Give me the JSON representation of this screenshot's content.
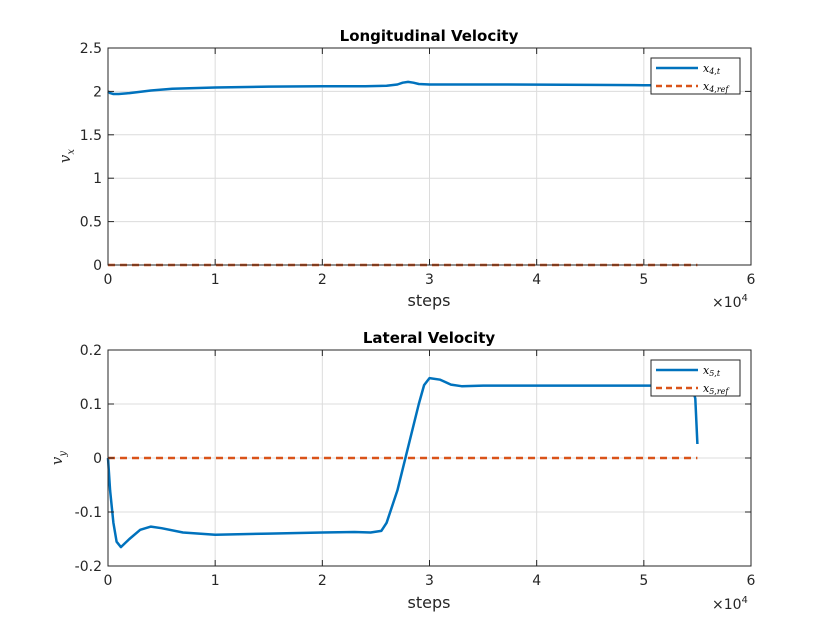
{
  "chart_data": [
    {
      "type": "line",
      "title": "Longitudinal Velocity",
      "xlabel": "steps",
      "ylabel_base": "v",
      "ylabel_sub": "x",
      "x_exponent_label": "×10",
      "x_exponent_power": "4",
      "xlim": [
        0,
        6
      ],
      "ylim": [
        0,
        2.5
      ],
      "xticks": [
        0,
        1,
        2,
        3,
        4,
        5,
        6
      ],
      "xtick_labels": [
        "0",
        "1",
        "2",
        "3",
        "4",
        "5",
        "6"
      ],
      "yticks": [
        0,
        0.5,
        1,
        1.5,
        2,
        2.5
      ],
      "ytick_labels": [
        "0",
        "0.5",
        "1",
        "1.5",
        "2",
        "2.5"
      ],
      "grid": true,
      "legend_position": "top-right",
      "series": [
        {
          "name": "x_{4,t}",
          "legend_base": "x",
          "legend_sub": "4,t",
          "style": "solid",
          "color": "#0072bd",
          "x": [
            0,
            0.02,
            0.05,
            0.1,
            0.2,
            0.4,
            0.6,
            1.0,
            1.5,
            2.0,
            2.4,
            2.6,
            2.7,
            2.75,
            2.8,
            2.85,
            2.9,
            3.0,
            3.5,
            4.0,
            4.5,
            5.0,
            5.5
          ],
          "y": [
            2.0,
            1.98,
            1.97,
            1.97,
            1.98,
            2.01,
            2.03,
            2.045,
            2.055,
            2.06,
            2.06,
            2.065,
            2.08,
            2.1,
            2.11,
            2.1,
            2.085,
            2.08,
            2.08,
            2.078,
            2.075,
            2.072,
            2.07
          ]
        },
        {
          "name": "x_{4,ref}",
          "legend_base": "x",
          "legend_sub": "4,ref",
          "style": "dashed",
          "color": "#d95319",
          "x": [
            0,
            5.5
          ],
          "y": [
            0,
            0
          ]
        }
      ]
    },
    {
      "type": "line",
      "title": "Lateral Velocity",
      "xlabel": "steps",
      "ylabel_base": "v",
      "ylabel_sub": "y",
      "x_exponent_label": "×10",
      "x_exponent_power": "4",
      "xlim": [
        0,
        6
      ],
      "ylim": [
        -0.2,
        0.2
      ],
      "xticks": [
        0,
        1,
        2,
        3,
        4,
        5,
        6
      ],
      "xtick_labels": [
        "0",
        "1",
        "2",
        "3",
        "4",
        "5",
        "6"
      ],
      "yticks": [
        -0.2,
        -0.1,
        0,
        0.1,
        0.2
      ],
      "ytick_labels": [
        "-0.2",
        "-0.1",
        "0",
        "0.1",
        "0.2"
      ],
      "grid": true,
      "legend_position": "top-right",
      "series": [
        {
          "name": "x_{5,t}",
          "legend_base": "x",
          "legend_sub": "5,t",
          "style": "solid",
          "color": "#0072bd",
          "x": [
            0,
            0.02,
            0.05,
            0.08,
            0.12,
            0.2,
            0.3,
            0.4,
            0.5,
            0.7,
            1.0,
            1.5,
            2.0,
            2.3,
            2.45,
            2.55,
            2.6,
            2.7,
            2.8,
            2.9,
            2.95,
            3.0,
            3.1,
            3.2,
            3.3,
            3.5,
            4.0,
            4.5,
            5.0,
            5.3,
            5.4,
            5.45,
            5.48,
            5.5
          ],
          "y": [
            0,
            -0.06,
            -0.12,
            -0.155,
            -0.165,
            -0.15,
            -0.133,
            -0.127,
            -0.13,
            -0.138,
            -0.142,
            -0.14,
            -0.138,
            -0.137,
            -0.138,
            -0.135,
            -0.12,
            -0.06,
            0.02,
            0.1,
            0.135,
            0.148,
            0.145,
            0.136,
            0.133,
            0.134,
            0.134,
            0.134,
            0.134,
            0.134,
            0.134,
            0.132,
            0.11,
            0.026
          ]
        },
        {
          "name": "x_{5,ref}",
          "legend_base": "x",
          "legend_sub": "5,ref",
          "style": "dashed",
          "color": "#d95319",
          "x": [
            0,
            5.5
          ],
          "y": [
            0,
            0
          ]
        }
      ]
    }
  ]
}
